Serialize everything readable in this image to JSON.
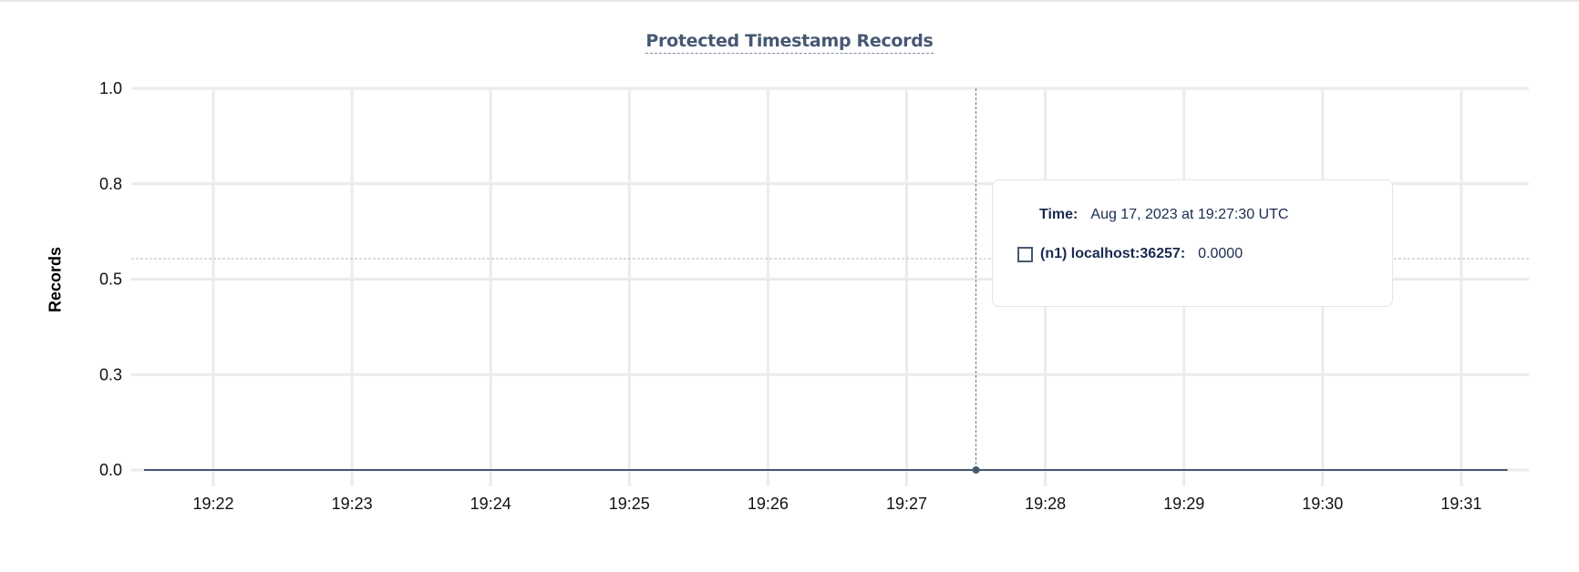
{
  "chart_data": {
    "type": "line",
    "title": "Protected Timestamp Records",
    "ylabel": "Records",
    "xlabel": "",
    "ylim": [
      0,
      1
    ],
    "yticks": [
      0,
      0.25,
      0.5,
      0.75,
      1.0
    ],
    "ytick_labels": [
      "0.0",
      "0.3",
      "0.5",
      "0.8",
      "1.0"
    ],
    "xtick_labels": [
      "19:22",
      "19:23",
      "19:24",
      "19:25",
      "19:26",
      "19:27",
      "19:28",
      "19:29",
      "19:30",
      "19:31"
    ],
    "grid": true,
    "series_color": "#475872",
    "series": [
      {
        "name": "(n1) localhost:36257",
        "x": [
          "19:21:30",
          "19:22:00",
          "19:23:00",
          "19:24:00",
          "19:25:00",
          "19:26:00",
          "19:27:00",
          "19:27:30",
          "19:28:00",
          "19:29:00",
          "19:30:00",
          "19:31:00",
          "19:31:20"
        ],
        "values": [
          0,
          0,
          0,
          0,
          0,
          0,
          0,
          0,
          0,
          0,
          0,
          0,
          0
        ]
      }
    ],
    "hover": {
      "time": "19:27:30",
      "value": 0
    }
  },
  "tooltip": {
    "time_label": "Time:",
    "time_value": "Aug 17, 2023 at 19:27:30 UTC",
    "series_label": "(n1) localhost:36257:",
    "series_value": "0.0000"
  }
}
